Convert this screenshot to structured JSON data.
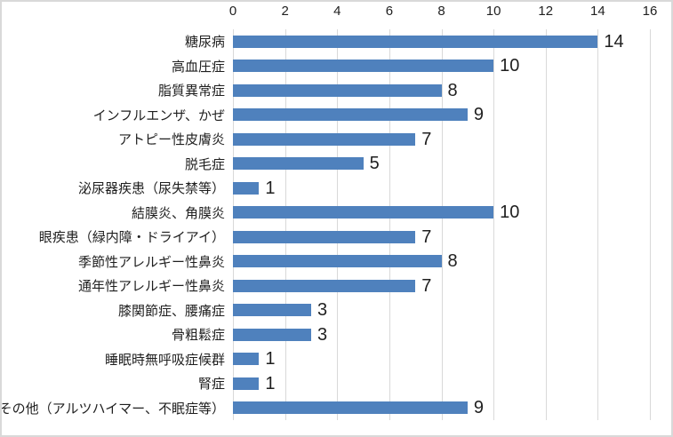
{
  "chart_data": {
    "type": "bar",
    "orientation": "horizontal",
    "title": "",
    "xlabel": "",
    "ylabel": "",
    "axis_position": "top",
    "grid": true,
    "legend": false,
    "data_labels": true,
    "xlim": [
      0,
      16
    ],
    "x_ticks": [
      0,
      2,
      4,
      6,
      8,
      10,
      12,
      14,
      16
    ],
    "categories": [
      "糖尿病",
      "高血圧症",
      "脂質異常症",
      "インフルエンザ、かぜ",
      "アトピー性皮膚炎",
      "脱毛症",
      "泌尿器疾患（尿失禁等）",
      "結膜炎、角膜炎",
      "眼疾患（緑内障・ドライアイ）",
      "季節性アレルギー性鼻炎",
      "通年性アレルギー性鼻炎",
      "膝関節症、腰痛症",
      "骨粗鬆症",
      "睡眠時無呼吸症候群",
      "腎症",
      "その他（アルツハイマー、不眠症等）"
    ],
    "values": [
      14,
      10,
      8,
      9,
      7,
      5,
      1,
      10,
      7,
      8,
      7,
      3,
      3,
      1,
      1,
      9
    ],
    "colors": {
      "bar": "#4F81BD",
      "gridline": "#D9D9D9",
      "border": "#D9D9D9",
      "background": "#FFFFFF",
      "text": "#1F1F1F"
    }
  }
}
